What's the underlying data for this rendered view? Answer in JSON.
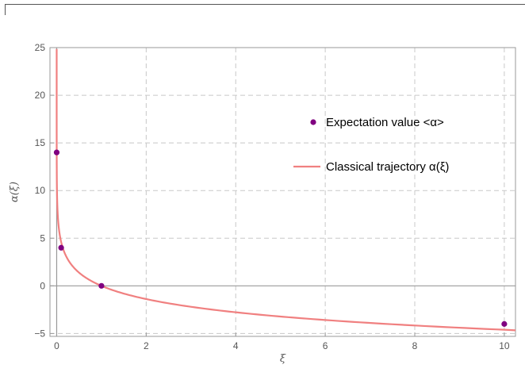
{
  "chart_data": {
    "type": "line",
    "xlabel": "ξ",
    "ylabel": "α(ξ)",
    "xlim": [
      -0.15,
      10.25
    ],
    "ylim": [
      -5.3,
      25
    ],
    "x_ticks": [
      0,
      2,
      4,
      6,
      8,
      10
    ],
    "y_ticks": [
      -5,
      0,
      5,
      10,
      15,
      20,
      25
    ],
    "grid": true,
    "legend_position": "right",
    "series": [
      {
        "name": "Expectation value <α>",
        "kind": "scatter",
        "color": "#800080",
        "points": [
          {
            "x": 0.0,
            "y": 14.0
          },
          {
            "x": 0.1,
            "y": 4.0
          },
          {
            "x": 1.0,
            "y": 0.0
          },
          {
            "x": 10.0,
            "y": -4.0
          }
        ]
      },
      {
        "name": "Classical trajectory α(ξ)",
        "kind": "line",
        "color": "#f08080",
        "function": "-2*ln(x)",
        "domain": [
          4e-06,
          10.3
        ]
      }
    ]
  }
}
